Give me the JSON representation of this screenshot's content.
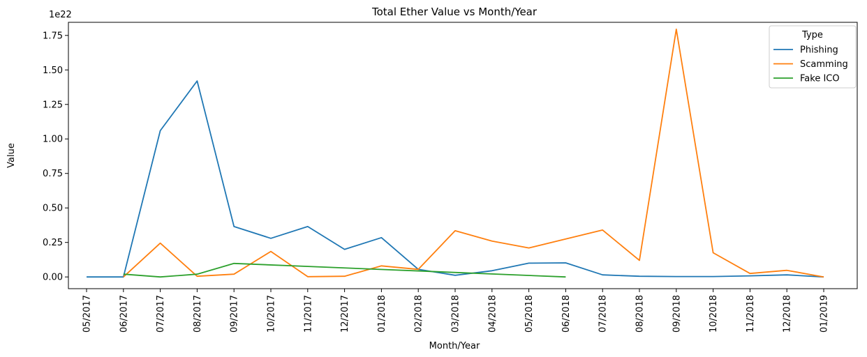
{
  "chart_data": {
    "type": "line",
    "title": "Total Ether Value vs Month/Year",
    "xlabel": "Month/Year",
    "ylabel": "Value",
    "y_offset_label": "1e22",
    "ylim": [
      -0.085,
      1.845
    ],
    "y_ticks": [
      "0.00",
      "0.25",
      "0.50",
      "0.75",
      "1.00",
      "1.25",
      "1.50",
      "1.75"
    ],
    "categories": [
      "05/2017",
      "06/2017",
      "07/2017",
      "08/2017",
      "09/2017",
      "10/2017",
      "11/2017",
      "12/2017",
      "01/2018",
      "02/2018",
      "03/2018",
      "04/2018",
      "05/2018",
      "06/2018",
      "07/2018",
      "08/2018",
      "09/2018",
      "10/2018",
      "11/2018",
      "12/2018",
      "01/2019"
    ],
    "legend": {
      "title": "Type",
      "position": "top-right"
    },
    "grid": false,
    "series": [
      {
        "name": "Phishing",
        "color": "#1f77b4",
        "values": [
          0.0,
          0.0,
          1.06,
          1.42,
          0.365,
          0.28,
          0.365,
          0.2,
          0.285,
          0.055,
          0.012,
          0.045,
          0.1,
          0.102,
          0.015,
          0.005,
          0.003,
          0.003,
          0.008,
          0.015,
          0.0
        ]
      },
      {
        "name": "Scamming",
        "color": "#ff7f0e",
        "values": [
          null,
          0.0,
          0.245,
          0.005,
          0.02,
          0.185,
          0.002,
          0.005,
          0.08,
          0.055,
          0.335,
          0.26,
          0.21,
          0.275,
          0.34,
          0.12,
          1.795,
          0.175,
          0.025,
          0.048,
          0.0
        ]
      },
      {
        "name": "Fake ICO",
        "color": "#2ca02c",
        "values": [
          null,
          0.02,
          0.0,
          0.02,
          0.098,
          null,
          null,
          null,
          null,
          null,
          null,
          null,
          null,
          0.0,
          null,
          null,
          null,
          null,
          null,
          null,
          null
        ]
      }
    ]
  }
}
